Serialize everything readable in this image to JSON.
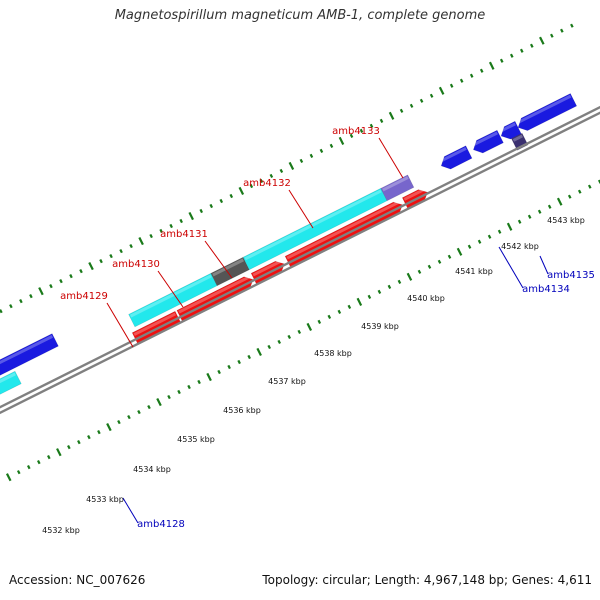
{
  "title": "Magnetospirillum magneticum AMB-1, complete genome",
  "accession": "Accession: NC_007626",
  "stats": "Topology: circular; Length: 4,967,148 bp; Genes: 4,611",
  "colors": {
    "background": "#ffffff",
    "backbone": "#808080",
    "tick": "#1a7a1a",
    "cyan": "#22e8ec",
    "blue": "#1a1ae0",
    "red": "#ee1111",
    "label_red": "#cc0000",
    "label_blue": "#0000bb",
    "purple": "#7766cc",
    "dark_purple": "#3a3070",
    "dark_grey": "#555555",
    "light_grey": "#c8c8c8",
    "pink": "#f08080"
  },
  "scale_labels": [
    {
      "pos": 4532,
      "label": "4532 kbp"
    },
    {
      "pos": 4533,
      "label": "4533 kbp"
    },
    {
      "pos": 4534,
      "label": "4534 kbp"
    },
    {
      "pos": 4535,
      "label": "4535 kbp"
    },
    {
      "pos": 4536,
      "label": "4536 kbp"
    },
    {
      "pos": 4537,
      "label": "4537 kbp"
    },
    {
      "pos": 4538,
      "label": "4538 kbp"
    },
    {
      "pos": 4539,
      "label": "4539 kbp"
    },
    {
      "pos": 4540,
      "label": "4540 kbp"
    },
    {
      "pos": 4541,
      "label": "4541 kbp"
    },
    {
      "pos": 4542,
      "label": "4542 kbp"
    },
    {
      "pos": 4543,
      "label": "4543 kbp"
    }
  ],
  "gene_labels": [
    {
      "name": "amb4129",
      "color": "label_red"
    },
    {
      "name": "amb4130",
      "color": "label_red"
    },
    {
      "name": "amb4131",
      "color": "label_red"
    },
    {
      "name": "amb4132",
      "color": "label_red"
    },
    {
      "name": "amb4133",
      "color": "label_red"
    },
    {
      "name": "amb4128",
      "color": "label_blue"
    },
    {
      "name": "amb4134",
      "color": "label_blue"
    },
    {
      "name": "amb4135",
      "color": "label_blue"
    }
  ]
}
